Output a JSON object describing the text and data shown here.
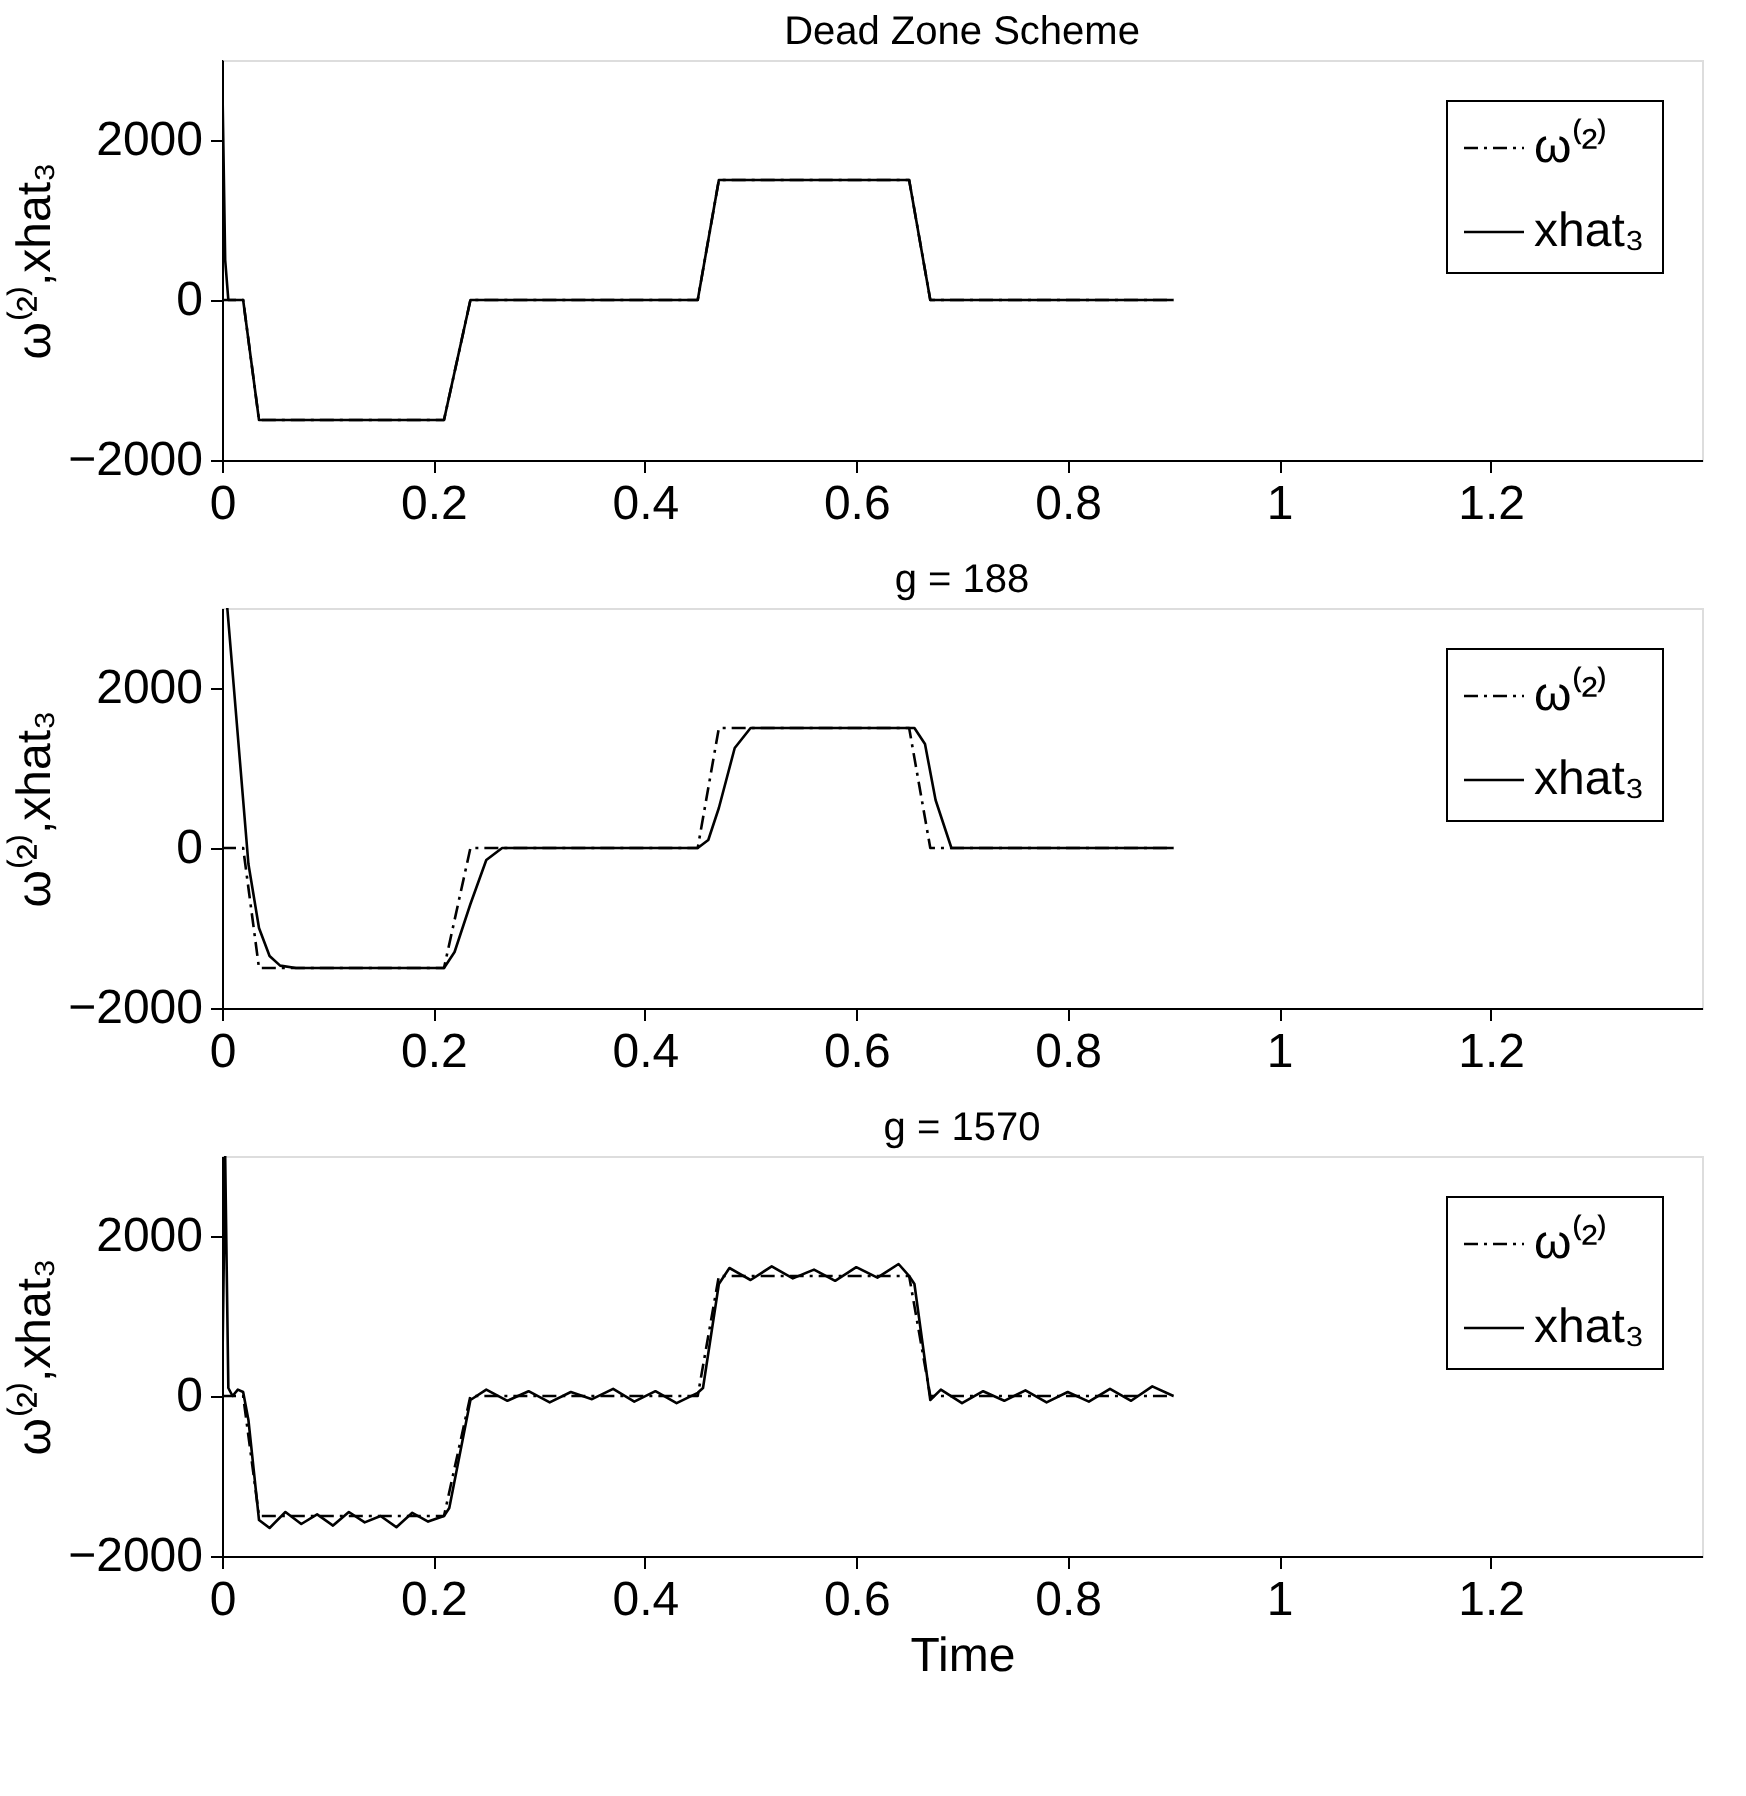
{
  "chart_data": [
    {
      "type": "line",
      "title": "Dead Zone Scheme",
      "ylabel": "ω⁽²⁾,xhat₃",
      "xlim": [
        0,
        1.4
      ],
      "ylim": [
        -2000,
        3000
      ],
      "xticks": [
        0,
        0.2,
        0.4,
        0.6,
        0.8,
        1,
        1.2
      ],
      "yticks": [
        -2000,
        0,
        2000
      ],
      "grid": false,
      "legend": "top right",
      "series": [
        {
          "name": "ω⁽²⁾",
          "color": "#000000",
          "line_style": "dashed",
          "x": [
            0,
            0.02,
            0.035,
            0.21,
            0.235,
            0.45,
            0.47,
            0.65,
            0.67,
            0.9
          ],
          "values": [
            0,
            0,
            -1500,
            -1500,
            0,
            0,
            1500,
            1500,
            0,
            0
          ]
        },
        {
          "name": "xhat₃",
          "color": "#000000",
          "line_style": "solid",
          "x": [
            0,
            0.003,
            0.006,
            0.02,
            0.035,
            0.21,
            0.235,
            0.45,
            0.47,
            0.65,
            0.67,
            0.9
          ],
          "values": [
            3000,
            500,
            0,
            0,
            -1500,
            -1500,
            0,
            0,
            1500,
            1500,
            0,
            0
          ]
        }
      ]
    },
    {
      "type": "line",
      "title": "g = 188",
      "ylabel": "ω⁽²⁾,xhat₃",
      "xlim": [
        0,
        1.4
      ],
      "ylim": [
        -2000,
        3000
      ],
      "xticks": [
        0,
        0.2,
        0.4,
        0.6,
        0.8,
        1,
        1.2
      ],
      "yticks": [
        -2000,
        0,
        2000
      ],
      "grid": false,
      "legend": "top right",
      "series": [
        {
          "name": "ω⁽²⁾",
          "color": "#000000",
          "line_style": "dashed",
          "x": [
            0,
            0.02,
            0.035,
            0.21,
            0.235,
            0.45,
            0.47,
            0.65,
            0.67,
            0.9
          ],
          "values": [
            0,
            0,
            -1500,
            -1500,
            0,
            0,
            1500,
            1500,
            0,
            0
          ]
        },
        {
          "name": "xhat₃",
          "color": "#000000",
          "line_style": "solid",
          "x": [
            0.005,
            0.015,
            0.025,
            0.035,
            0.045,
            0.055,
            0.07,
            0.21,
            0.22,
            0.235,
            0.25,
            0.265,
            0.45,
            0.46,
            0.47,
            0.485,
            0.5,
            0.655,
            0.665,
            0.675,
            0.69,
            0.9
          ],
          "values": [
            3000,
            1400,
            -200,
            -1000,
            -1350,
            -1470,
            -1500,
            -1500,
            -1300,
            -700,
            -150,
            0,
            0,
            100,
            500,
            1250,
            1500,
            1500,
            1300,
            600,
            0,
            0
          ]
        }
      ]
    },
    {
      "type": "line",
      "title": "g = 1570",
      "xlabel": "Time",
      "ylabel": "ω⁽²⁾,xhat₃",
      "xlim": [
        0,
        1.4
      ],
      "ylim": [
        -2000,
        3000
      ],
      "xticks": [
        0,
        0.2,
        0.4,
        0.6,
        0.8,
        1,
        1.2
      ],
      "yticks": [
        -2000,
        0,
        2000
      ],
      "grid": false,
      "legend": "top right",
      "series": [
        {
          "name": "ω⁽²⁾",
          "color": "#000000",
          "line_style": "dashed",
          "x": [
            0,
            0.02,
            0.035,
            0.21,
            0.235,
            0.45,
            0.47,
            0.65,
            0.67,
            0.9
          ],
          "values": [
            0,
            0,
            -1500,
            -1500,
            0,
            0,
            1500,
            1500,
            0,
            0
          ]
        },
        {
          "name": "xhat₃",
          "color": "#000000",
          "line_style": "solid",
          "x": [
            0,
            0.003,
            0.006,
            0.01,
            0.015,
            0.02,
            0.025,
            0.035,
            0.045,
            0.06,
            0.075,
            0.09,
            0.105,
            0.12,
            0.135,
            0.15,
            0.165,
            0.18,
            0.195,
            0.21,
            0.215,
            0.235,
            0.25,
            0.27,
            0.29,
            0.31,
            0.33,
            0.35,
            0.37,
            0.39,
            0.41,
            0.43,
            0.45,
            0.455,
            0.47,
            0.48,
            0.5,
            0.52,
            0.54,
            0.56,
            0.58,
            0.6,
            0.62,
            0.64,
            0.65,
            0.655,
            0.67,
            0.68,
            0.7,
            0.72,
            0.74,
            0.76,
            0.78,
            0.8,
            0.82,
            0.84,
            0.86,
            0.88,
            0.9
          ],
          "values": [
            0,
            3000,
            100,
            0,
            80,
            50,
            -300,
            -1550,
            -1650,
            -1450,
            -1600,
            -1480,
            -1620,
            -1450,
            -1580,
            -1500,
            -1640,
            -1460,
            -1570,
            -1500,
            -1400,
            -50,
            80,
            -60,
            60,
            -80,
            50,
            -40,
            90,
            -70,
            60,
            -90,
            40,
            100,
            1400,
            1600,
            1450,
            1620,
            1470,
            1580,
            1440,
            1610,
            1480,
            1650,
            1500,
            1400,
            -50,
            80,
            -90,
            60,
            -60,
            70,
            -80,
            50,
            -70,
            90,
            -60,
            120,
            0
          ]
        }
      ]
    }
  ]
}
